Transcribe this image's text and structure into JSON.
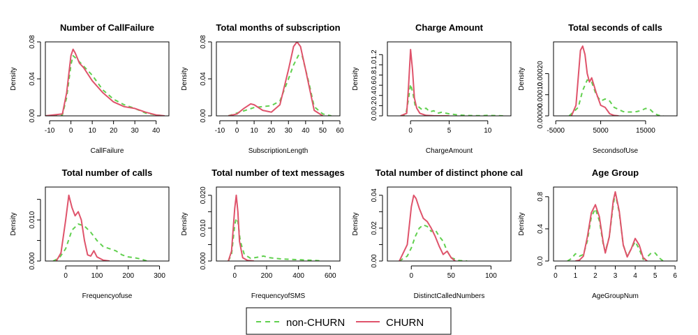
{
  "colors": {
    "non_churn": "#61D04F",
    "churn": "#DF536B"
  },
  "legend": {
    "items": [
      {
        "label": "non-CHURN",
        "dash": true
      },
      {
        "label": "CHURN",
        "dash": false
      }
    ]
  },
  "chart_data": [
    {
      "type": "line",
      "title": "Number of CallFailure",
      "xlabel": "CallFailure",
      "ylabel": "Density",
      "xlim": [
        -12,
        46
      ],
      "ylim": [
        0,
        0.08
      ],
      "xticks": [
        -10,
        0,
        10,
        20,
        30,
        40
      ],
      "yticks": [
        0,
        0.04,
        0.08
      ],
      "yticklabels": [
        "0.00",
        "0.04",
        "0.08"
      ],
      "series": [
        {
          "name": "non-CHURN",
          "x": [
            -12,
            -4,
            -2,
            0,
            1,
            2,
            5,
            10,
            15,
            20,
            25,
            30,
            35,
            40,
            44
          ],
          "y": [
            0,
            0.001,
            0.02,
            0.055,
            0.065,
            0.063,
            0.056,
            0.044,
            0.028,
            0.018,
            0.012,
            0.008,
            0.003,
            0.001,
            0
          ]
        },
        {
          "name": "CHURN",
          "x": [
            -12,
            -4,
            -2,
            0,
            1,
            2,
            4,
            6,
            10,
            15,
            20,
            25,
            30,
            35,
            40,
            44
          ],
          "y": [
            0,
            0.002,
            0.025,
            0.065,
            0.072,
            0.068,
            0.057,
            0.052,
            0.038,
            0.025,
            0.015,
            0.01,
            0.008,
            0.004,
            0.001,
            0
          ]
        }
      ]
    },
    {
      "type": "line",
      "title": "Total months of subscription",
      "xlabel": "SubscriptionLength",
      "ylabel": "Density",
      "xlim": [
        -12,
        60
      ],
      "ylim": [
        0,
        0.08
      ],
      "xticks": [
        -10,
        0,
        10,
        20,
        30,
        40,
        50,
        60
      ],
      "yticks": [
        0,
        0.04,
        0.08
      ],
      "yticklabels": [
        "0.00",
        "0.04",
        "0.08"
      ],
      "series": [
        {
          "name": "non-CHURN",
          "x": [
            -5,
            0,
            5,
            10,
            15,
            20,
            25,
            30,
            33,
            36,
            38,
            42,
            45,
            50,
            55
          ],
          "y": [
            0,
            0.003,
            0.006,
            0.009,
            0.01,
            0.011,
            0.016,
            0.04,
            0.055,
            0.066,
            0.065,
            0.035,
            0.01,
            0.002,
            0
          ]
        },
        {
          "name": "CHURN",
          "x": [
            -5,
            0,
            4,
            8,
            10,
            15,
            20,
            25,
            30,
            33,
            35,
            37,
            40,
            45,
            50
          ],
          "y": [
            0,
            0.002,
            0.008,
            0.013,
            0.012,
            0.006,
            0.004,
            0.012,
            0.05,
            0.075,
            0.08,
            0.075,
            0.05,
            0.006,
            0
          ]
        }
      ]
    },
    {
      "type": "line",
      "title": "Charge Amount",
      "xlabel": "ChargeAmount",
      "ylabel": "Density",
      "xlim": [
        -3,
        13
      ],
      "ylim": [
        0,
        1.45
      ],
      "xticks": [
        0,
        5,
        10
      ],
      "yticks": [
        0,
        0.2,
        0.4,
        0.6,
        0.8,
        1.0,
        1.2
      ],
      "yticklabels": [
        "0.0",
        "0.2",
        "0.4",
        "0.6",
        "0.8",
        "1.0",
        "1.2"
      ],
      "series": [
        {
          "name": "non-CHURN",
          "x": [
            -1.3,
            -0.6,
            -0.3,
            0,
            0.3,
            0.6,
            1,
            1.5,
            2,
            2.5,
            3,
            3.5,
            4,
            5,
            6,
            7,
            8,
            9,
            10,
            12
          ],
          "y": [
            0,
            0.03,
            0.3,
            0.62,
            0.45,
            0.2,
            0.18,
            0.12,
            0.15,
            0.08,
            0.1,
            0.05,
            0.07,
            0.04,
            0.02,
            0.01,
            0.005,
            0.003,
            0.01,
            0
          ]
        },
        {
          "name": "CHURN",
          "x": [
            -1.3,
            -0.5,
            -0.25,
            0,
            0.25,
            0.5,
            0.8,
            1.2,
            2,
            3,
            4,
            5
          ],
          "y": [
            0,
            0.05,
            0.6,
            1.3,
            0.9,
            0.35,
            0.15,
            0.05,
            0.01,
            0.002,
            0,
            0
          ]
        }
      ]
    },
    {
      "type": "line",
      "title": "Total seconds of calls",
      "xlabel": "SecondsofUse",
      "ylabel": "Density",
      "xlim": [
        -5500,
        22000
      ],
      "ylim": [
        0,
        0.00035
      ],
      "xticks": [
        -5000,
        5000,
        15000
      ],
      "yticks": [
        0,
        0.0001,
        0.0002
      ],
      "yticklabels": [
        "0.00000",
        "0.00010",
        "0.00020"
      ],
      "series": [
        {
          "name": "non-CHURN",
          "x": [
            -2000,
            0,
            1000,
            2000,
            3000,
            4000,
            5000,
            6000,
            7000,
            8000,
            9000,
            10000,
            11000,
            12000,
            13000,
            14000,
            15000,
            16000,
            17000,
            18000,
            19000
          ],
          "y": [
            0,
            4e-05,
            0.00012,
            0.00017,
            0.00016,
            0.0001,
            7e-05,
            8e-05,
            7e-05,
            4e-05,
            3e-05,
            2e-05,
            1.8e-05,
            1.8e-05,
            2e-05,
            2.5e-05,
            3.5e-05,
            3e-05,
            1e-05,
            2e-06,
            0
          ]
        },
        {
          "name": "CHURN",
          "x": [
            -1500,
            -500,
            0,
            500,
            1000,
            1500,
            2000,
            2500,
            3000,
            4000,
            5000,
            6000,
            7000,
            8000,
            9000
          ],
          "y": [
            0,
            5e-05,
            0.00018,
            0.00031,
            0.00033,
            0.00029,
            0.0002,
            0.00016,
            0.00018,
            0.00011,
            5e-05,
            4e-05,
            1e-05,
            2e-06,
            0
          ]
        }
      ]
    },
    {
      "type": "line",
      "title": "Total number of calls",
      "xlabel": "Frequencyofuse",
      "ylabel": "Density",
      "xlim": [
        -65,
        330
      ],
      "ylim": [
        0,
        0.018
      ],
      "xticks": [
        0,
        100,
        200,
        300
      ],
      "yticks": [
        0,
        0.005,
        0.01,
        0.015
      ],
      "yticklabels": [
        "0.000",
        "",
        "0.010",
        ""
      ],
      "series": [
        {
          "name": "non-CHURN",
          "x": [
            -40,
            -20,
            0,
            20,
            40,
            60,
            80,
            100,
            120,
            140,
            160,
            180,
            200,
            220,
            240,
            260
          ],
          "y": [
            0,
            0.0008,
            0.003,
            0.0075,
            0.009,
            0.0085,
            0.007,
            0.005,
            0.0035,
            0.003,
            0.0025,
            0.0015,
            0.001,
            0.0008,
            0.0005,
            0
          ]
        },
        {
          "name": "CHURN",
          "x": [
            -30,
            -15,
            0,
            10,
            20,
            30,
            40,
            50,
            60,
            70,
            80,
            90,
            100,
            120,
            140
          ],
          "y": [
            0,
            0.002,
            0.01,
            0.016,
            0.013,
            0.011,
            0.012,
            0.01,
            0.005,
            0.0015,
            0.0012,
            0.0025,
            0.001,
            0.0002,
            0
          ]
        }
      ]
    },
    {
      "type": "line",
      "title": "Total number of text messages",
      "xlabel": "FrequencyofSMS",
      "ylabel": "Density",
      "xlim": [
        -115,
        660
      ],
      "ylim": [
        0,
        0.0225
      ],
      "xticks": [
        0,
        200,
        400,
        600
      ],
      "yticks": [
        0,
        0.005,
        0.01,
        0.015,
        0.02
      ],
      "yticklabels": [
        "0.000",
        "",
        "0.010",
        "",
        "0.020"
      ],
      "series": [
        {
          "name": "non-CHURN",
          "x": [
            -40,
            -20,
            0,
            10,
            20,
            35,
            60,
            100,
            150,
            180,
            220,
            300,
            400,
            500,
            550
          ],
          "y": [
            0,
            0.002,
            0.011,
            0.013,
            0.012,
            0.006,
            0.002,
            0.0008,
            0.0012,
            0.0015,
            0.001,
            0.0006,
            0.0004,
            0.0002,
            0
          ]
        },
        {
          "name": "CHURN",
          "x": [
            -40,
            -20,
            0,
            10,
            20,
            30,
            50,
            80,
            120
          ],
          "y": [
            0,
            0.003,
            0.016,
            0.02,
            0.015,
            0.006,
            0.001,
            0.0002,
            0
          ]
        }
      ]
    },
    {
      "type": "line",
      "title": "Total number of distinct phone cal",
      "xlabel": "DistinctCalledNumbers",
      "ylabel": "Density",
      "xlim": [
        -30,
        125
      ],
      "ylim": [
        0,
        0.045
      ],
      "xticks": [
        0,
        50,
        100
      ],
      "yticks": [
        0,
        0.01,
        0.02,
        0.03,
        0.04
      ],
      "yticklabels": [
        "0.00",
        "",
        "0.02",
        "",
        "0.04"
      ],
      "series": [
        {
          "name": "non-CHURN",
          "x": [
            -15,
            -5,
            0,
            5,
            10,
            15,
            20,
            25,
            30,
            35,
            40,
            45,
            50,
            60,
            70
          ],
          "y": [
            0,
            0.003,
            0.008,
            0.015,
            0.02,
            0.022,
            0.021,
            0.018,
            0.019,
            0.015,
            0.012,
            0.006,
            0.002,
            0.0003,
            0
          ]
        },
        {
          "name": "CHURN",
          "x": [
            -15,
            -5,
            0,
            3,
            6,
            10,
            15,
            20,
            25,
            30,
            35,
            40,
            45,
            50,
            55
          ],
          "y": [
            0,
            0.01,
            0.033,
            0.04,
            0.038,
            0.032,
            0.026,
            0.024,
            0.02,
            0.015,
            0.009,
            0.004,
            0.006,
            0.002,
            0
          ]
        }
      ]
    },
    {
      "type": "line",
      "title": "Age Group",
      "xlabel": "AgeGroupNum",
      "ylabel": "Density",
      "xlim": [
        -0.1,
        6.1
      ],
      "ylim": [
        0,
        0.92
      ],
      "xticks": [
        0,
        1,
        2,
        3,
        4,
        5,
        6
      ],
      "yticks": [
        0,
        0.4,
        0.8
      ],
      "yticklabels": [
        "0.0",
        "0.4",
        "0.8"
      ],
      "series": [
        {
          "name": "non-CHURN",
          "x": [
            0.6,
            0.8,
            1.0,
            1.2,
            1.4,
            1.6,
            1.8,
            2.0,
            2.2,
            2.4,
            2.5,
            2.7,
            2.9,
            3.0,
            3.2,
            3.4,
            3.6,
            3.8,
            4.0,
            4.2,
            4.4,
            4.6,
            4.8,
            5.0,
            5.2,
            5.4
          ],
          "y": [
            0,
            0.03,
            0.09,
            0.06,
            0.08,
            0.25,
            0.55,
            0.65,
            0.5,
            0.2,
            0.12,
            0.3,
            0.7,
            0.84,
            0.6,
            0.2,
            0.06,
            0.15,
            0.24,
            0.15,
            0.02,
            0.05,
            0.1,
            0.1,
            0.04,
            0
          ]
        },
        {
          "name": "CHURN",
          "x": [
            1.0,
            1.2,
            1.4,
            1.6,
            1.8,
            2.0,
            2.2,
            2.4,
            2.5,
            2.7,
            2.9,
            3.0,
            3.2,
            3.4,
            3.6,
            3.8,
            4.0,
            4.2,
            4.4,
            4.6
          ],
          "y": [
            0,
            0.01,
            0.06,
            0.3,
            0.6,
            0.7,
            0.55,
            0.22,
            0.1,
            0.3,
            0.75,
            0.86,
            0.62,
            0.2,
            0.05,
            0.15,
            0.28,
            0.2,
            0.04,
            0
          ]
        }
      ]
    }
  ]
}
